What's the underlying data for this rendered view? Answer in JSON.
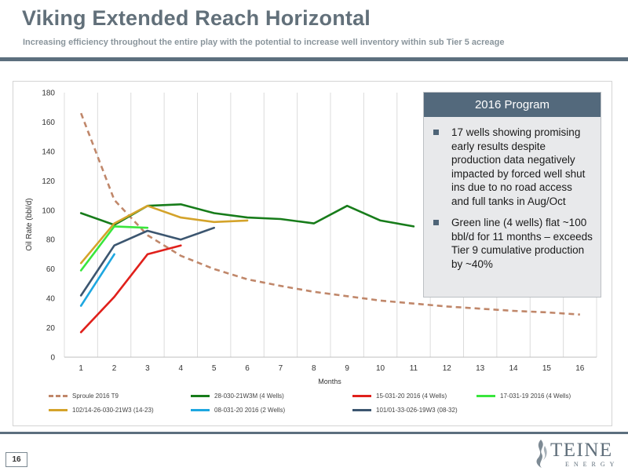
{
  "header": {
    "title": "Viking Extended Reach Horizontal",
    "subtitle": "Increasing efficiency throughout the entire play with the potential to increase well inventory within sub Tier 5 acreage"
  },
  "colors": {
    "accent": "#53697c",
    "title": "#62707a"
  },
  "program_box": {
    "heading": "2016 Program",
    "bullets": [
      "17 wells showing promising early results despite production data negatively impacted by forced well shut ins due to no road access and full tanks in Aug/Oct",
      "Green line (4 wells) flat ~100 bbl/d for 11 months – exceeds Tier 9 cumulative production by ~40%"
    ]
  },
  "footer": {
    "page_number": "16",
    "logo_text": "TEINE",
    "logo_subtext": "ENERGY"
  },
  "chart_data": {
    "type": "line",
    "title": "",
    "xlabel": "Months",
    "ylabel": "Oil Rate (bbl/d)",
    "xlim": [
      1,
      16
    ],
    "ylim": [
      0,
      180
    ],
    "x_ticks": [
      1,
      2,
      3,
      4,
      5,
      6,
      7,
      8,
      9,
      10,
      11,
      12,
      13,
      14,
      15,
      16
    ],
    "y_ticks": [
      0,
      20,
      40,
      60,
      80,
      100,
      120,
      140,
      160,
      180
    ],
    "grid": "vertical",
    "legend_position": "bottom",
    "series": [
      {
        "name": "Sproule 2016 T9",
        "color": "#c0876a",
        "dashed": true,
        "x": [
          1,
          2,
          3,
          4,
          5,
          6,
          7,
          8,
          9,
          10,
          11,
          12,
          13,
          14,
          15,
          16
        ],
        "y": [
          166,
          107,
          83,
          69,
          60,
          53,
          48.5,
          44.5,
          41.5,
          38.5,
          36.5,
          34.5,
          33,
          31.5,
          30.5,
          29
        ]
      },
      {
        "name": "28-030-21W3M (4 Wells)",
        "color": "#177c1a",
        "dashed": false,
        "x": [
          1,
          2,
          3,
          4,
          5,
          6,
          7,
          8,
          9,
          10,
          11
        ],
        "y": [
          98,
          90,
          103,
          104,
          98,
          95,
          94,
          91,
          103,
          93,
          89
        ]
      },
      {
        "name": "15-031-20 2016 (4 Wells)",
        "color": "#e0201b",
        "dashed": false,
        "x": [
          1,
          2,
          3,
          4
        ],
        "y": [
          17,
          41,
          70,
          76
        ]
      },
      {
        "name": "17-031-19 2016 (4 Wells)",
        "color": "#39e63c",
        "dashed": false,
        "x": [
          1,
          2,
          3
        ],
        "y": [
          59,
          89,
          88
        ]
      },
      {
        "name": "102/14-26-030-21W3 (14-23)",
        "color": "#d4a32a",
        "dashed": false,
        "x": [
          1,
          2,
          3,
          4,
          5,
          6
        ],
        "y": [
          64,
          91,
          103,
          95,
          92,
          93
        ]
      },
      {
        "name": "08-031-20 2016 (2 Wells)",
        "color": "#1ea7e0",
        "dashed": false,
        "x": [
          1,
          2
        ],
        "y": [
          35,
          70
        ]
      },
      {
        "name": "101/01-33-026-19W3 (08-32)",
        "color": "#3c5670",
        "dashed": false,
        "x": [
          1,
          2,
          3,
          4,
          5
        ],
        "y": [
          42,
          76,
          86,
          80,
          88
        ]
      }
    ]
  }
}
